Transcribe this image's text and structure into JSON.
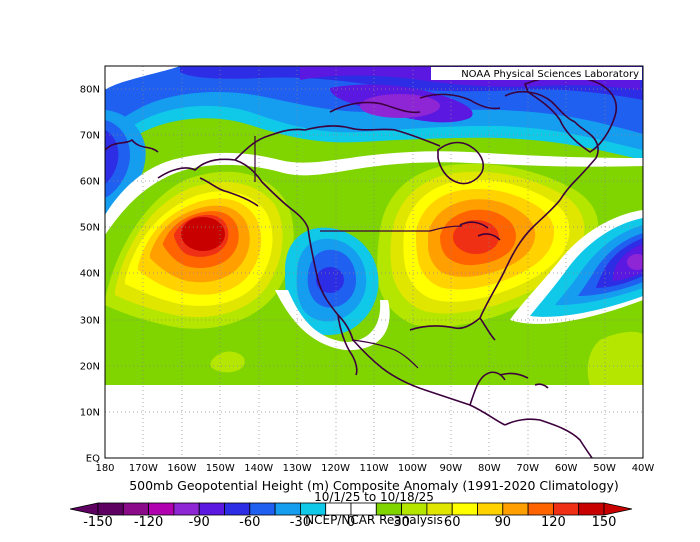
{
  "credit": "NOAA Physical Sciences Laboratory",
  "title": "500mb Geopotential Height (m) Composite Anomaly (1991-2020 Climatology)",
  "date_range": "10/1/25 to 10/18/25",
  "source": "NCEP/NCAR Reanalysis",
  "lat_labels": [
    "80N",
    "70N",
    "60N",
    "50N",
    "40N",
    "30N",
    "20N",
    "10N",
    "EQ"
  ],
  "lon_labels": [
    "180",
    "170W",
    "160W",
    "150W",
    "140W",
    "130W",
    "120W",
    "110W",
    "100W",
    "90W",
    "80W",
    "70W",
    "60W",
    "50W",
    "40W"
  ],
  "colorbar": {
    "labels": [
      "-150",
      "-120",
      "-90",
      "-60",
      "-30",
      "0",
      "30",
      "60",
      "90",
      "120",
      "150"
    ],
    "colors": [
      "#5e0062",
      "#8a0a8a",
      "#b000b0",
      "#8f26d6",
      "#5a18e0",
      "#2d2de6",
      "#1f60f0",
      "#159ef0",
      "#10c8e8",
      "#ffffff",
      "#ffffff",
      "#80d400",
      "#b4e600",
      "#e0e600",
      "#ffff00",
      "#ffd200",
      "#ffa000",
      "#ff6400",
      "#f03014",
      "#c80000"
    ]
  }
}
